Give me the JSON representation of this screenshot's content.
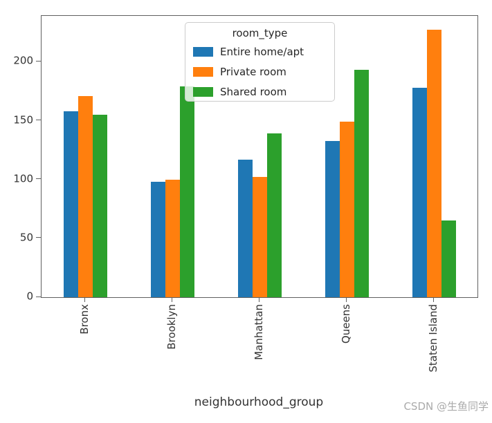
{
  "figure": {
    "watermark": "CSDN @生鱼同学"
  },
  "legend": {
    "title": "room_type",
    "entries": [
      {
        "label": "Entire home/apt",
        "color": "#1f77b4"
      },
      {
        "label": "Private room",
        "color": "#ff7f0e"
      },
      {
        "label": "Shared room",
        "color": "#2ca02c"
      }
    ]
  },
  "chart_data": {
    "type": "bar",
    "title": "",
    "xlabel": "neighbourhood_group",
    "ylabel": "",
    "categories": [
      "Bronx",
      "Brooklyn",
      "Manhattan",
      "Queens",
      "Staten Island"
    ],
    "series": [
      {
        "name": "Entire home/apt",
        "color": "#1f77b4",
        "values": [
          158,
          98,
          117,
          133,
          178
        ]
      },
      {
        "name": "Private room",
        "color": "#ff7f0e",
        "values": [
          171,
          100,
          102,
          149,
          227
        ]
      },
      {
        "name": "Shared room",
        "color": "#2ca02c",
        "values": [
          155,
          179,
          139,
          193,
          65
        ]
      }
    ],
    "ylim": [
      0,
      239
    ],
    "yticks": [
      0,
      50,
      100,
      150,
      200
    ],
    "grid": false,
    "legend_title": "room_type",
    "legend_position": "upper center",
    "x_tick_rotation": 90
  }
}
